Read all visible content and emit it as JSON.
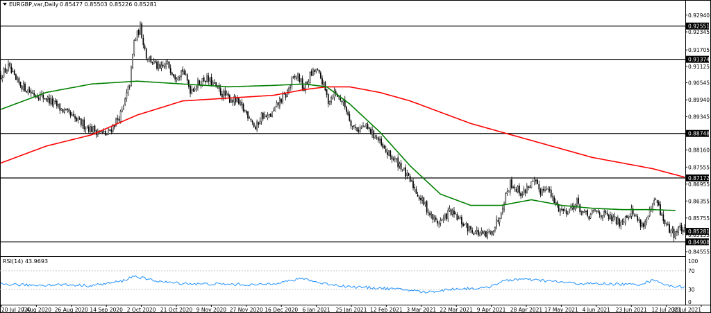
{
  "header": {
    "symbol": "EURGBP,var,Daily",
    "ohlc": "0.85477 0.85503 0.85226 0.85281",
    "rsi_label": "RSI(14) 43.9693"
  },
  "price_axis": {
    "ticks": [
      "0.92940",
      "0.92345",
      "0.91705",
      "0.91125",
      "0.90545",
      "0.89940",
      "0.89345",
      "0.88160",
      "0.87555",
      "0.86955",
      "0.86355",
      "0.85755",
      "0.85155",
      "0.84555"
    ],
    "levels": [
      {
        "label": "0.92551",
        "value": 0.92551
      },
      {
        "label": "0.91374",
        "value": 0.91374
      },
      {
        "label": "0.88748",
        "value": 0.88748
      },
      {
        "label": "0.87172",
        "value": 0.87172
      },
      {
        "label": "0.84908",
        "value": 0.84908
      }
    ],
    "current": {
      "label": "0.85281",
      "value": 0.85281
    },
    "range": [
      0.844,
      0.9318
    ]
  },
  "rsi_axis": {
    "ticks": [
      "100",
      "70",
      "30",
      "0"
    ]
  },
  "time_axis": {
    "labels": [
      "20 Jul 2020",
      "7 Aug 2020",
      "26 Aug 2020",
      "14 Sep 2020",
      "2 Oct 2020",
      "21 Oct 2020",
      "9 Nov 2020",
      "27 Nov 2020",
      "16 Dec 2020",
      "6 Jan 2021",
      "25 Jan 2021",
      "12 Feb 2021",
      "3 Mar 2021",
      "22 Mar 2021",
      "9 Apr 2021",
      "28 Apr 2021",
      "17 May 2021",
      "4 Jun 2021",
      "23 Jun 2021",
      "12 Jul 2021",
      "30 Jul 2021"
    ]
  },
  "colors": {
    "ma_fast": "#008000",
    "ma_slow": "#ff0000",
    "rsi": "#1e90ff",
    "level_box": "#000000",
    "candle": "#000000"
  },
  "chart_data": {
    "type": "candlestick",
    "title": "EURGBP,var,Daily",
    "ylim": [
      0.844,
      0.9318
    ],
    "close_path": [
      [
        0,
        0.908
      ],
      [
        5,
        0.911
      ],
      [
        10,
        0.906
      ],
      [
        20,
        0.902
      ],
      [
        30,
        0.9
      ],
      [
        40,
        0.896
      ],
      [
        50,
        0.892
      ],
      [
        60,
        0.889
      ],
      [
        70,
        0.887
      ],
      [
        80,
        0.895
      ],
      [
        85,
        0.905
      ],
      [
        88,
        0.92
      ],
      [
        92,
        0.925
      ],
      [
        96,
        0.915
      ],
      [
        100,
        0.913
      ],
      [
        105,
        0.91
      ],
      [
        110,
        0.912
      ],
      [
        115,
        0.908
      ],
      [
        120,
        0.91
      ],
      [
        125,
        0.903
      ],
      [
        130,
        0.905
      ],
      [
        135,
        0.907
      ],
      [
        140,
        0.905
      ],
      [
        145,
        0.902
      ],
      [
        150,
        0.9
      ],
      [
        155,
        0.899
      ],
      [
        160,
        0.896
      ],
      [
        165,
        0.893
      ],
      [
        168,
        0.889
      ],
      [
        172,
        0.894
      ],
      [
        176,
        0.893
      ],
      [
        180,
        0.895
      ],
      [
        184,
        0.899
      ],
      [
        188,
        0.901
      ],
      [
        192,
        0.906
      ],
      [
        196,
        0.908
      ],
      [
        200,
        0.903
      ],
      [
        204,
        0.908
      ],
      [
        208,
        0.91
      ],
      [
        212,
        0.906
      ],
      [
        216,
        0.899
      ],
      [
        220,
        0.902
      ],
      [
        224,
        0.9
      ],
      [
        228,
        0.896
      ],
      [
        232,
        0.89
      ],
      [
        236,
        0.889
      ],
      [
        240,
        0.89
      ],
      [
        244,
        0.888
      ],
      [
        248,
        0.886
      ],
      [
        252,
        0.882
      ],
      [
        256,
        0.88
      ],
      [
        260,
        0.878
      ],
      [
        264,
        0.876
      ],
      [
        268,
        0.872
      ],
      [
        272,
        0.869
      ],
      [
        276,
        0.865
      ],
      [
        280,
        0.862
      ],
      [
        284,
        0.858
      ],
      [
        288,
        0.856
      ],
      [
        292,
        0.857
      ],
      [
        296,
        0.86
      ],
      [
        300,
        0.858
      ],
      [
        304,
        0.856
      ],
      [
        308,
        0.854
      ],
      [
        312,
        0.853
      ],
      [
        316,
        0.852
      ],
      [
        320,
        0.851
      ],
      [
        324,
        0.853
      ],
      [
        328,
        0.857
      ],
      [
        332,
        0.864
      ],
      [
        336,
        0.87
      ],
      [
        340,
        0.868
      ],
      [
        344,
        0.866
      ],
      [
        348,
        0.869
      ],
      [
        352,
        0.87
      ],
      [
        356,
        0.867
      ],
      [
        360,
        0.869
      ],
      [
        364,
        0.864
      ],
      [
        368,
        0.861
      ],
      [
        372,
        0.86
      ],
      [
        376,
        0.861
      ],
      [
        380,
        0.863
      ],
      [
        384,
        0.859
      ],
      [
        388,
        0.858
      ],
      [
        392,
        0.86
      ],
      [
        396,
        0.859
      ],
      [
        400,
        0.858
      ],
      [
        404,
        0.857
      ],
      [
        408,
        0.856
      ],
      [
        412,
        0.858
      ],
      [
        416,
        0.86
      ],
      [
        420,
        0.857
      ],
      [
        424,
        0.855
      ],
      [
        428,
        0.859
      ],
      [
        432,
        0.864
      ],
      [
        436,
        0.858
      ],
      [
        440,
        0.854
      ],
      [
        444,
        0.852
      ],
      [
        448,
        0.854
      ],
      [
        451,
        0.8528
      ]
    ],
    "ma_fast": [
      [
        0,
        0.896
      ],
      [
        30,
        0.902
      ],
      [
        60,
        0.905
      ],
      [
        90,
        0.906
      ],
      [
        120,
        0.905
      ],
      [
        150,
        0.904
      ],
      [
        180,
        0.9045
      ],
      [
        200,
        0.905
      ],
      [
        215,
        0.904
      ],
      [
        230,
        0.898
      ],
      [
        250,
        0.888
      ],
      [
        270,
        0.876
      ],
      [
        290,
        0.866
      ],
      [
        310,
        0.862
      ],
      [
        330,
        0.862
      ],
      [
        350,
        0.864
      ],
      [
        370,
        0.862
      ],
      [
        390,
        0.861
      ],
      [
        410,
        0.8605
      ],
      [
        430,
        0.8605
      ],
      [
        445,
        0.8602
      ]
    ],
    "ma_slow": [
      [
        0,
        0.877
      ],
      [
        30,
        0.883
      ],
      [
        60,
        0.887
      ],
      [
        90,
        0.894
      ],
      [
        120,
        0.899
      ],
      [
        150,
        0.9
      ],
      [
        180,
        0.901
      ],
      [
        200,
        0.903
      ],
      [
        215,
        0.904
      ],
      [
        230,
        0.904
      ],
      [
        250,
        0.902
      ],
      [
        270,
        0.899
      ],
      [
        290,
        0.895
      ],
      [
        310,
        0.891
      ],
      [
        330,
        0.888
      ],
      [
        350,
        0.885
      ],
      [
        370,
        0.882
      ],
      [
        390,
        0.879
      ],
      [
        410,
        0.877
      ],
      [
        430,
        0.875
      ],
      [
        451,
        0.872
      ]
    ],
    "rsi": [
      [
        0,
        52
      ],
      [
        20,
        48
      ],
      [
        40,
        50
      ],
      [
        60,
        47
      ],
      [
        80,
        60
      ],
      [
        88,
        75
      ],
      [
        96,
        66
      ],
      [
        110,
        56
      ],
      [
        130,
        52
      ],
      [
        150,
        51
      ],
      [
        170,
        49
      ],
      [
        190,
        60
      ],
      [
        200,
        68
      ],
      [
        210,
        55
      ],
      [
        230,
        44
      ],
      [
        250,
        40
      ],
      [
        270,
        34
      ],
      [
        280,
        28
      ],
      [
        300,
        38
      ],
      [
        320,
        40
      ],
      [
        330,
        58
      ],
      [
        340,
        66
      ],
      [
        360,
        61
      ],
      [
        380,
        53
      ],
      [
        400,
        52
      ],
      [
        420,
        50
      ],
      [
        432,
        64
      ],
      [
        440,
        46
      ],
      [
        451,
        44
      ]
    ]
  }
}
